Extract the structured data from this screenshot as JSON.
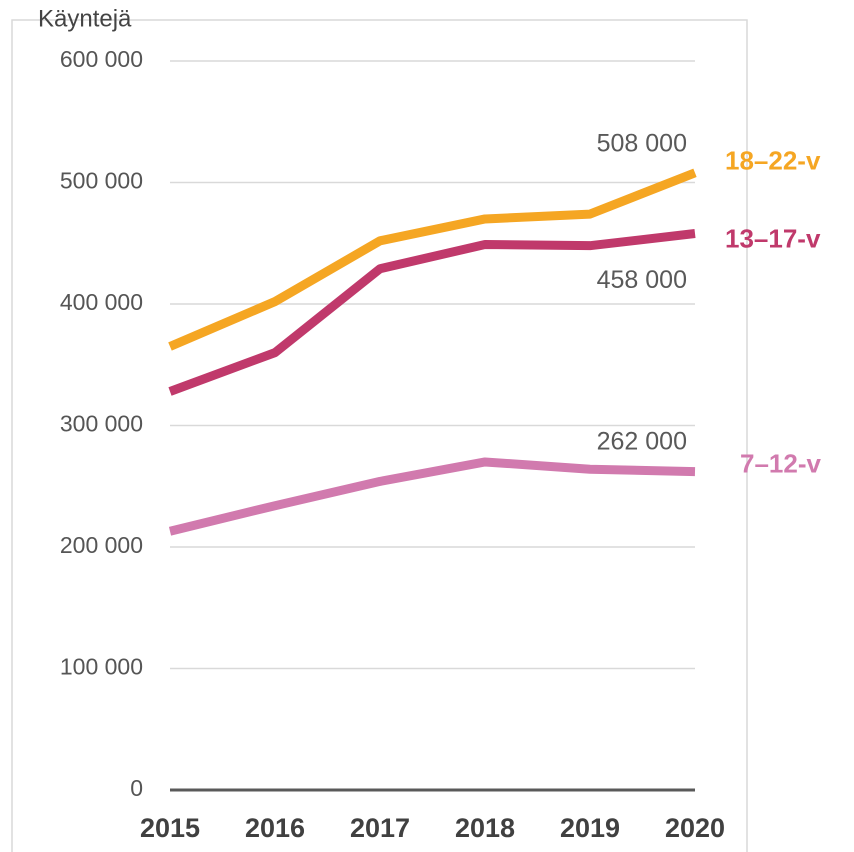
{
  "chart_data": {
    "type": "line",
    "ylabel": "Käyntejä",
    "categories": [
      "2015",
      "2016",
      "2017",
      "2018",
      "2019",
      "2020"
    ],
    "series": [
      {
        "name": "18–22-v",
        "color": "#f5a623",
        "values": [
          365000,
          402000,
          452000,
          470000,
          474000,
          508000
        ],
        "value_labels": [
          null,
          null,
          null,
          null,
          null,
          "508 000"
        ]
      },
      {
        "name": "13–17-v",
        "color": "#c0396b",
        "values": [
          328000,
          360000,
          429000,
          449000,
          448000,
          458000
        ],
        "value_labels": [
          null,
          null,
          null,
          null,
          null,
          "458 000"
        ]
      },
      {
        "name": "7–12-v",
        "color": "#d17aae",
        "values": [
          213000,
          234000,
          254000,
          270000,
          264000,
          262000
        ],
        "value_labels": [
          null,
          null,
          null,
          null,
          null,
          "262 000"
        ]
      }
    ],
    "ylim": [
      0,
      600000
    ],
    "yticks": [
      {
        "value": 0,
        "label": "0"
      },
      {
        "value": 100000,
        "label": "100 000"
      },
      {
        "value": 200000,
        "label": "200 000"
      },
      {
        "value": 300000,
        "label": "300 000"
      },
      {
        "value": 400000,
        "label": "400 000"
      },
      {
        "value": 500000,
        "label": "500 000"
      },
      {
        "value": 600000,
        "label": "600 000"
      }
    ],
    "grid": true
  }
}
